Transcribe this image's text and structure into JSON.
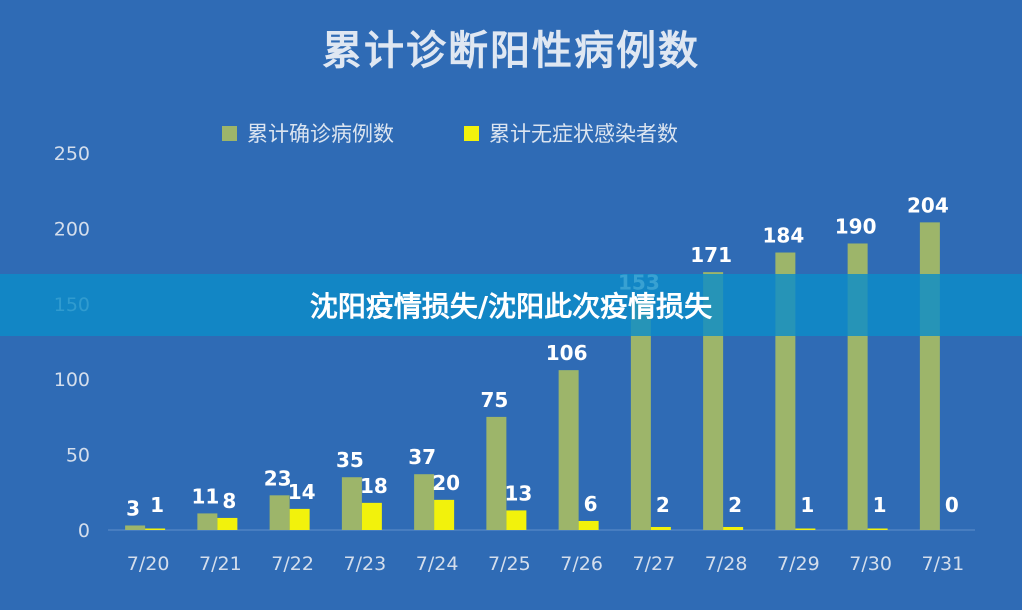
{
  "chart_data": {
    "type": "bar",
    "title": "累计诊断阳性病例数",
    "categories": [
      "7/20",
      "7/21",
      "7/22",
      "7/23",
      "7/24",
      "7/25",
      "7/26",
      "7/27",
      "7/28",
      "7/29",
      "7/30",
      "7/31"
    ],
    "series": [
      {
        "name": "累计确诊病例数",
        "color": "#9db56a",
        "values": [
          3,
          11,
          23,
          35,
          37,
          75,
          106,
          153,
          171,
          184,
          190,
          204
        ]
      },
      {
        "name": "累计无症状感染者数",
        "color": "#f2f20c",
        "values": [
          1,
          8,
          14,
          18,
          20,
          13,
          6,
          2,
          2,
          1,
          1,
          0
        ]
      }
    ],
    "ylim": [
      0,
      250
    ],
    "yticks": [
      0,
      50,
      100,
      150,
      200,
      250
    ],
    "grid": false,
    "legend_position": "top-center"
  },
  "banner_text": "沈阳疫情损失/沈阳此次疫情损失",
  "colors": {
    "background": "#2f6bb5",
    "axis_text": "#d4deec",
    "label_text": "#ffffff",
    "banner": "#0c8cc8"
  }
}
